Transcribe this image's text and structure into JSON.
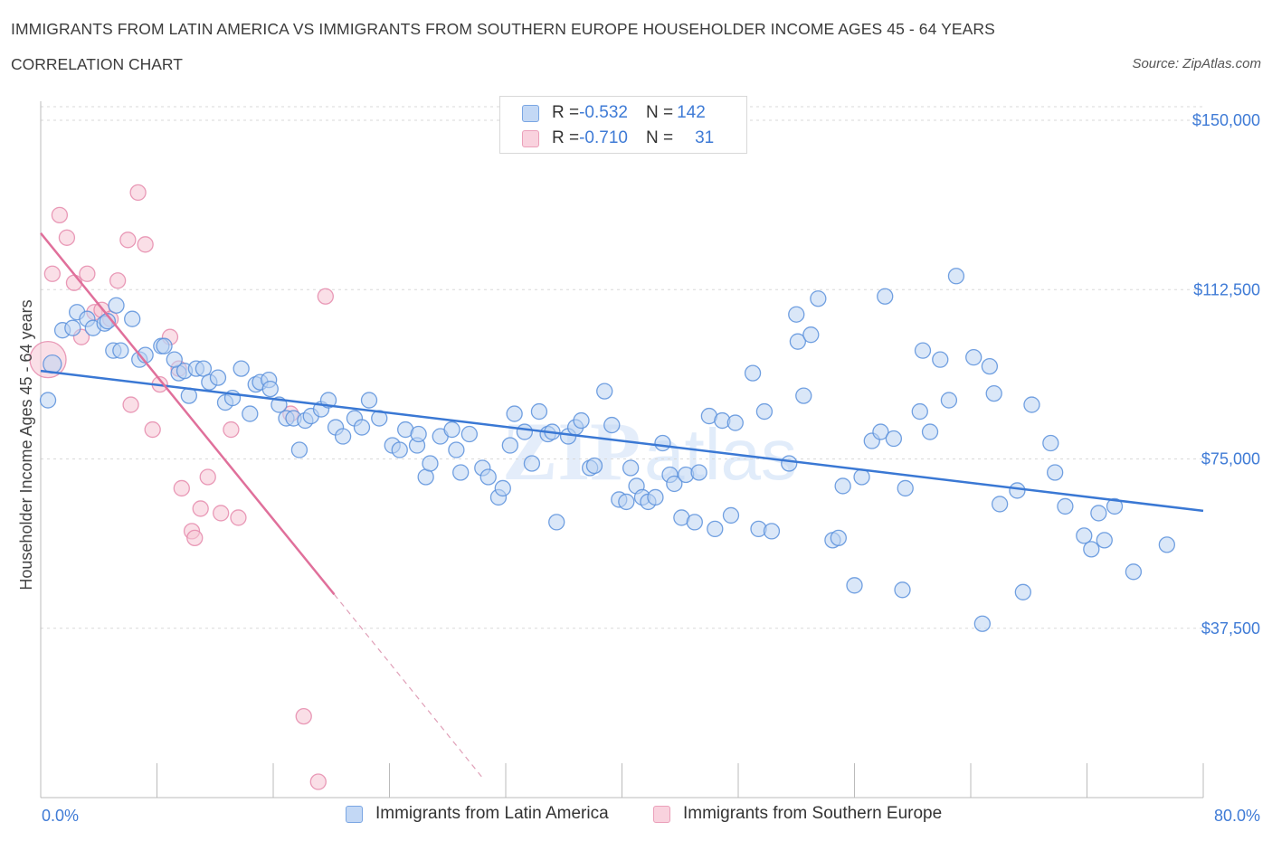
{
  "header": {
    "title": "IMMIGRANTS FROM LATIN AMERICA VS IMMIGRANTS FROM SOUTHERN EUROPE HOUSEHOLDER INCOME AGES 45 - 64 YEARS",
    "subtitle": "CORRELATION CHART",
    "source": "Source: ZipAtlas.com"
  },
  "legend": {
    "rows": [
      {
        "r_label": "R = ",
        "r_value": "-0.532",
        "n_label": "N = ",
        "n_value": "142"
      },
      {
        "r_label": "R = ",
        "r_value": "-0.710",
        "n_label": "N = ",
        "n_value": "31"
      }
    ]
  },
  "colors": {
    "blue": "#3a78d4",
    "blue_fill": "#b7d0f3",
    "pink": "#e0709b",
    "pink_fill": "#f6c4d4",
    "grid": "#d9d9d9",
    "tick_text": "#3f7bd6"
  },
  "chart_data": {
    "type": "scatter",
    "title": "IMMIGRANTS FROM LATIN AMERICA VS IMMIGRANTS FROM SOUTHERN EUROPE HOUSEHOLDER INCOME AGES 45 - 64 YEARS",
    "xlabel": "",
    "ylabel": "Householder Income Ages 45 - 64 years",
    "xlim": [
      0,
      80
    ],
    "ylim": [
      0,
      150000
    ],
    "x_tick_labels": [
      "0.0%",
      "80.0%"
    ],
    "y_ticks": [
      {
        "value": 150000,
        "label": "$150,000"
      },
      {
        "value": 112500,
        "label": "$112,500"
      },
      {
        "value": 75000,
        "label": "$75,000"
      },
      {
        "value": 37500,
        "label": "$37,500"
      }
    ],
    "grid": true,
    "legend_position": "top-center and bottom",
    "watermark": "ZIPatlas",
    "series": [
      {
        "name": "Immigrants from Latin America",
        "color": "#3a78d4",
        "trend": {
          "x1": 0,
          "y1": 94500,
          "x2": 80,
          "y2": 63500,
          "dashed_from": null
        },
        "points": [
          [
            0.5,
            88000
          ],
          [
            0.8,
            96000
          ],
          [
            1.5,
            103500
          ],
          [
            2.2,
            104000
          ],
          [
            2.5,
            107500
          ],
          [
            3.2,
            106000
          ],
          [
            3.6,
            104000
          ],
          [
            4.4,
            105000
          ],
          [
            4.6,
            105500
          ],
          [
            5.0,
            99000
          ],
          [
            5.5,
            99000
          ],
          [
            6.3,
            106000
          ],
          [
            6.8,
            97000
          ],
          [
            7.2,
            98000
          ],
          [
            8.3,
            100000
          ],
          [
            8.5,
            100000
          ],
          [
            9.5,
            94000
          ],
          [
            9.9,
            94500
          ],
          [
            10.2,
            89000
          ],
          [
            10.7,
            95000
          ],
          [
            11.2,
            95000
          ],
          [
            11.6,
            92000
          ],
          [
            12.2,
            93000
          ],
          [
            12.7,
            87500
          ],
          [
            13.2,
            88500
          ],
          [
            13.8,
            95000
          ],
          [
            14.4,
            85000
          ],
          [
            14.8,
            91500
          ],
          [
            15.1,
            92000
          ],
          [
            15.7,
            92500
          ],
          [
            15.8,
            90500
          ],
          [
            16.4,
            87000
          ],
          [
            16.9,
            84000
          ],
          [
            17.4,
            84000
          ],
          [
            17.8,
            77000
          ],
          [
            18.2,
            83500
          ],
          [
            18.6,
            84500
          ],
          [
            19.3,
            86000
          ],
          [
            19.8,
            88000
          ],
          [
            20.3,
            82000
          ],
          [
            20.8,
            80000
          ],
          [
            21.6,
            84000
          ],
          [
            22.1,
            82000
          ],
          [
            22.6,
            88000
          ],
          [
            23.3,
            84000
          ],
          [
            24.2,
            78000
          ],
          [
            24.7,
            77000
          ],
          [
            25.1,
            81500
          ],
          [
            25.9,
            78000
          ],
          [
            26.5,
            71000
          ],
          [
            26.8,
            74000
          ],
          [
            27.5,
            80000
          ],
          [
            28.3,
            81500
          ],
          [
            28.6,
            77000
          ],
          [
            28.9,
            72000
          ],
          [
            29.5,
            80500
          ],
          [
            30.4,
            73000
          ],
          [
            30.8,
            71000
          ],
          [
            31.5,
            66500
          ],
          [
            31.8,
            68500
          ],
          [
            32.3,
            78000
          ],
          [
            32.6,
            85000
          ],
          [
            33.3,
            81000
          ],
          [
            33.8,
            74000
          ],
          [
            34.3,
            85500
          ],
          [
            34.9,
            80500
          ],
          [
            35.2,
            81000
          ],
          [
            35.5,
            61000
          ],
          [
            36.3,
            80000
          ],
          [
            36.8,
            82000
          ],
          [
            37.2,
            83500
          ],
          [
            37.8,
            73000
          ],
          [
            38.1,
            73500
          ],
          [
            38.8,
            90000
          ],
          [
            39.3,
            82500
          ],
          [
            39.8,
            66000
          ],
          [
            40.3,
            65500
          ],
          [
            40.6,
            73000
          ],
          [
            41.0,
            69000
          ],
          [
            41.4,
            66500
          ],
          [
            41.8,
            65500
          ],
          [
            42.3,
            66500
          ],
          [
            42.8,
            78500
          ],
          [
            43.3,
            71500
          ],
          [
            43.6,
            69500
          ],
          [
            44.1,
            62000
          ],
          [
            44.4,
            71500
          ],
          [
            45.0,
            61000
          ],
          [
            45.3,
            72000
          ],
          [
            46.0,
            84500
          ],
          [
            46.4,
            59500
          ],
          [
            46.9,
            83500
          ],
          [
            47.5,
            62500
          ],
          [
            47.8,
            83000
          ],
          [
            49.0,
            94000
          ],
          [
            49.4,
            59500
          ],
          [
            49.8,
            85500
          ],
          [
            50.3,
            59000
          ],
          [
            51.5,
            74000
          ],
          [
            52.1,
            101000
          ],
          [
            52.5,
            89000
          ],
          [
            53.0,
            102500
          ],
          [
            53.5,
            110500
          ],
          [
            54.5,
            57000
          ],
          [
            54.9,
            57500
          ],
          [
            55.2,
            69000
          ],
          [
            56.0,
            47000
          ],
          [
            56.5,
            71000
          ],
          [
            57.2,
            79000
          ],
          [
            57.8,
            81000
          ],
          [
            58.1,
            111000
          ],
          [
            58.7,
            79500
          ],
          [
            59.3,
            46000
          ],
          [
            59.5,
            68500
          ],
          [
            60.5,
            85500
          ],
          [
            60.7,
            99000
          ],
          [
            61.2,
            81000
          ],
          [
            61.9,
            97000
          ],
          [
            62.5,
            88000
          ],
          [
            63.0,
            115500
          ],
          [
            64.2,
            97500
          ],
          [
            64.8,
            38500
          ],
          [
            65.3,
            95500
          ],
          [
            65.6,
            89500
          ],
          [
            66.0,
            65000
          ],
          [
            67.2,
            68000
          ],
          [
            67.6,
            45500
          ],
          [
            68.2,
            87000
          ],
          [
            69.5,
            78500
          ],
          [
            69.8,
            72000
          ],
          [
            70.5,
            64500
          ],
          [
            71.8,
            58000
          ],
          [
            72.3,
            55000
          ],
          [
            72.8,
            63000
          ],
          [
            73.2,
            57000
          ],
          [
            73.9,
            64500
          ],
          [
            75.2,
            50000
          ],
          [
            77.5,
            56000
          ],
          [
            5.2,
            109000
          ],
          [
            9.2,
            97000
          ],
          [
            26.0,
            80500
          ],
          [
            52.0,
            107000
          ]
        ]
      },
      {
        "name": "Immigrants from Southern Europe",
        "color": "#e0709b",
        "trend": {
          "x1": 0,
          "y1": 125000,
          "x2": 20.2,
          "y2": 45000,
          "dashed_from": {
            "x1": 20.2,
            "y1": 45000,
            "x2": 30.5,
            "y2": 4000
          }
        },
        "points": [
          [
            0.5,
            97000
          ],
          [
            0.8,
            116000
          ],
          [
            1.3,
            129000
          ],
          [
            1.8,
            124000
          ],
          [
            2.3,
            114000
          ],
          [
            2.8,
            102000
          ],
          [
            3.2,
            116000
          ],
          [
            3.7,
            107500
          ],
          [
            4.2,
            108000
          ],
          [
            4.8,
            106000
          ],
          [
            5.3,
            114500
          ],
          [
            6.0,
            123500
          ],
          [
            6.2,
            87000
          ],
          [
            6.7,
            134000
          ],
          [
            7.2,
            122500
          ],
          [
            7.7,
            81500
          ],
          [
            8.2,
            91500
          ],
          [
            8.9,
            102000
          ],
          [
            9.5,
            95000
          ],
          [
            9.7,
            68500
          ],
          [
            10.4,
            59000
          ],
          [
            10.6,
            57500
          ],
          [
            11.0,
            64000
          ],
          [
            11.5,
            71000
          ],
          [
            12.4,
            63000
          ],
          [
            13.1,
            81500
          ],
          [
            13.6,
            62000
          ],
          [
            17.2,
            85000
          ],
          [
            18.1,
            18000
          ],
          [
            19.1,
            3500
          ],
          [
            19.6,
            111000
          ]
        ]
      }
    ]
  },
  "bottom_legend": {
    "items": [
      {
        "label": "Immigrants from Latin America"
      },
      {
        "label": "Immigrants from Southern Europe"
      }
    ]
  }
}
